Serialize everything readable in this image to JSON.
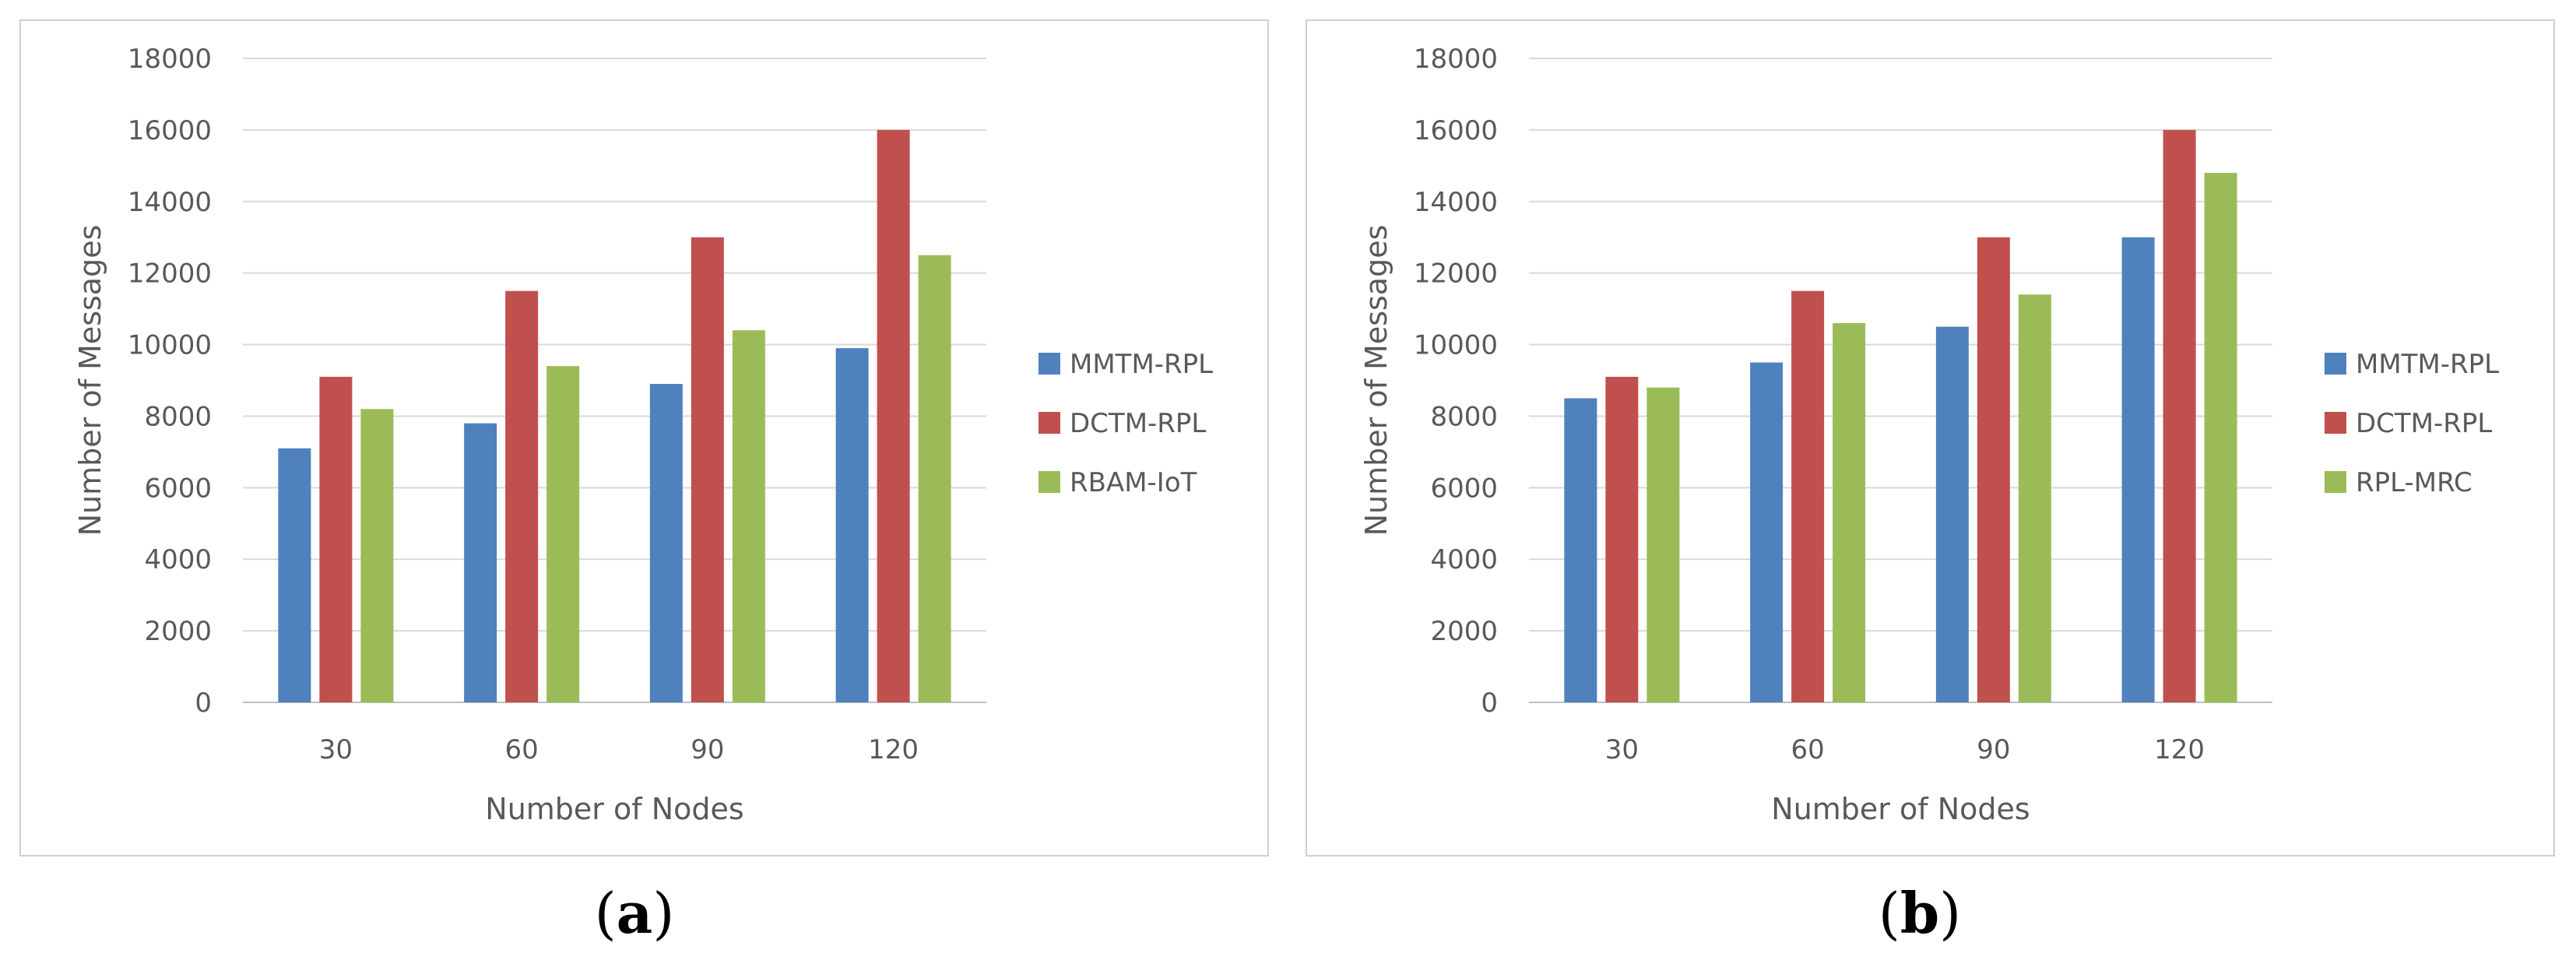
{
  "chart_data": [
    {
      "type": "bar",
      "panel_label": "a",
      "categories": [
        "30",
        "60",
        "90",
        "120"
      ],
      "series": [
        {
          "name": "MMTM-RPL",
          "color": "#4f81bd",
          "values": [
            7100,
            7800,
            8900,
            9900
          ]
        },
        {
          "name": "DCTM-RPL",
          "color": "#c0504d",
          "values": [
            9100,
            11500,
            13000,
            16000
          ]
        },
        {
          "name": "RBAM-IoT",
          "color": "#9bbb59",
          "values": [
            8200,
            9400,
            10400,
            12500
          ]
        }
      ],
      "xlabel": "Number of Nodes",
      "ylabel": "Number  of Messages",
      "ylim": [
        0,
        18000
      ],
      "yticks": [
        "0",
        "2000",
        "4000",
        "6000",
        "8000",
        "10000",
        "12000",
        "14000",
        "16000",
        "18000"
      ],
      "grid": true,
      "legend_position": "right"
    },
    {
      "type": "bar",
      "panel_label": "b",
      "categories": [
        "30",
        "60",
        "90",
        "120"
      ],
      "series": [
        {
          "name": "MMTM-RPL",
          "color": "#4f81bd",
          "values": [
            8500,
            9500,
            10500,
            13000
          ]
        },
        {
          "name": "DCTM-RPL",
          "color": "#c0504d",
          "values": [
            9100,
            11500,
            13000,
            16000
          ]
        },
        {
          "name": "RPL-MRC",
          "color": "#9bbb59",
          "values": [
            8800,
            10600,
            11400,
            14800
          ]
        }
      ],
      "xlabel": "Number  of Nodes",
      "ylabel": "Number  of Messages",
      "ylim": [
        0,
        18000
      ],
      "yticks": [
        "0",
        "2000",
        "4000",
        "6000",
        "8000",
        "10000",
        "12000",
        "14000",
        "16000",
        "18000"
      ],
      "grid": true,
      "legend_position": "right"
    }
  ],
  "captions": {
    "a": {
      "open": "(",
      "letter": "a",
      "close": ")"
    },
    "b": {
      "open": "(",
      "letter": "b",
      "close": ")"
    }
  }
}
